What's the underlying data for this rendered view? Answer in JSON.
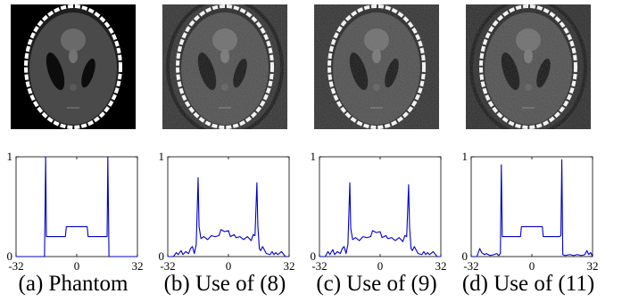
{
  "panels": [
    {
      "caption": "(a) Phantom",
      "image": {
        "background": "#000000",
        "noise": false,
        "outer_ring": false
      },
      "chart_data": {
        "type": "line",
        "xlim": [
          -32,
          32
        ],
        "ylim": [
          0,
          1
        ],
        "xticks": [
          "-32",
          "0",
          "32"
        ],
        "yticks": [
          "0",
          "1"
        ],
        "series": [
          {
            "color": "#0000cc",
            "x": [
              -32,
              -17.5,
              -17,
              -16.4,
              -16,
              -15.5,
              -6,
              -5.5,
              5.5,
              6,
              15.5,
              16,
              16.4,
              17,
              17.5,
              32
            ],
            "y": [
              0,
              0,
              0,
              1.0,
              0.2,
              0.2,
              0.2,
              0.3,
              0.3,
              0.2,
              0.2,
              0.2,
              1.0,
              0,
              0,
              0
            ]
          }
        ]
      }
    },
    {
      "caption": "(b) Use of (8)",
      "image": {
        "background": "#2c2c2c",
        "noise": true,
        "outer_ring": true
      },
      "chart_data": {
        "type": "line",
        "xlim": [
          -32,
          32
        ],
        "ylim": [
          0,
          1
        ],
        "xticks": [
          "-32",
          "0",
          "32"
        ],
        "yticks": [
          "0",
          "1"
        ],
        "series": [
          {
            "color": "#0000cc",
            "x": [
              -32,
              -29,
              -27.5,
              -26.5,
              -25,
              -24,
              -22.5,
              -21,
              -20,
              -19,
              -18,
              -17,
              -16,
              -15.5,
              -14.5,
              -13,
              -11,
              -9,
              -7,
              -5,
              -4,
              -2,
              0,
              1,
              3,
              4,
              6,
              8,
              10,
              12,
              13,
              14,
              15,
              15.5,
              16.3,
              17,
              18,
              20,
              22,
              23,
              24,
              25,
              26,
              28,
              30,
              32
            ],
            "y": [
              0,
              0,
              0.04,
              0.02,
              0.06,
              0.02,
              0.05,
              0.03,
              0.08,
              0.1,
              0.03,
              0.12,
              0.79,
              0.3,
              0.18,
              0.2,
              0.17,
              0.21,
              0.2,
              0.21,
              0.27,
              0.25,
              0.26,
              0.2,
              0.22,
              0.19,
              0.2,
              0.17,
              0.2,
              0.16,
              0.22,
              0.21,
              0.74,
              0.31,
              0.08,
              0.06,
              0.1,
              0.03,
              0.02,
              0.05,
              0.02,
              0.04,
              0.02,
              0.05,
              0,
              0
            ]
          }
        ]
      }
    },
    {
      "caption": "(c) Use of (9)",
      "image": {
        "background": "#2c2c2c",
        "noise": true,
        "outer_ring": false
      },
      "chart_data": {
        "type": "line",
        "xlim": [
          -32,
          32
        ],
        "ylim": [
          0,
          1
        ],
        "xticks": [
          "-32",
          "0",
          "32"
        ],
        "yticks": [
          "0",
          "1"
        ],
        "series": [
          {
            "color": "#0000cc",
            "x": [
              -32,
              -29,
              -27.5,
              -26.5,
              -25,
              -24,
              -22.5,
              -21,
              -20,
              -19,
              -18,
              -17,
              -16,
              -15.5,
              -14.5,
              -13,
              -11,
              -9,
              -7,
              -5,
              -4,
              -2,
              0,
              1,
              3,
              4,
              6,
              8,
              10,
              12,
              13,
              14,
              15,
              15.5,
              16.3,
              17,
              18,
              20,
              22,
              23,
              24,
              25,
              26,
              28,
              30,
              32
            ],
            "y": [
              0,
              0,
              0.05,
              0.02,
              0.07,
              0.02,
              0.05,
              0.03,
              0.08,
              0.1,
              0.03,
              0.12,
              0.74,
              0.28,
              0.17,
              0.19,
              0.16,
              0.2,
              0.19,
              0.2,
              0.26,
              0.24,
              0.25,
              0.19,
              0.21,
              0.18,
              0.19,
              0.16,
              0.19,
              0.15,
              0.21,
              0.2,
              0.72,
              0.3,
              0.08,
              0.06,
              0.1,
              0.03,
              0.02,
              0.05,
              0.02,
              0.04,
              0.02,
              0.05,
              0,
              0
            ]
          }
        ]
      }
    },
    {
      "caption": "(d) Use of (11)",
      "image": {
        "background": "#262626",
        "noise": true,
        "outer_ring": true
      },
      "chart_data": {
        "type": "line",
        "xlim": [
          -32,
          32
        ],
        "ylim": [
          0,
          1
        ],
        "xticks": [
          "-32",
          "0",
          "32"
        ],
        "yticks": [
          "0",
          "1"
        ],
        "series": [
          {
            "color": "#0000cc",
            "x": [
              -32,
              -29,
              -27.5,
              -26.5,
              -25,
              -24,
              -22,
              -20,
              -18.5,
              -17.5,
              -16.6,
              -16.1,
              -15.6,
              -14.5,
              -6,
              -5.5,
              5.5,
              6,
              14.5,
              15.3,
              15.8,
              16.3,
              17.5,
              20,
              22,
              24,
              26,
              28,
              29,
              30,
              31,
              32
            ],
            "y": [
              0,
              0,
              0.08,
              0.04,
              0.02,
              0.03,
              0.01,
              0.02,
              0.03,
              0.01,
              0.03,
              0.92,
              0.2,
              0.2,
              0.2,
              0.3,
              0.3,
              0.2,
              0.2,
              0.21,
              0.97,
              0.02,
              0.01,
              0.02,
              0.01,
              0.02,
              0.01,
              0.02,
              0.06,
              0.02,
              0.04,
              0
            ]
          }
        ]
      }
    }
  ]
}
